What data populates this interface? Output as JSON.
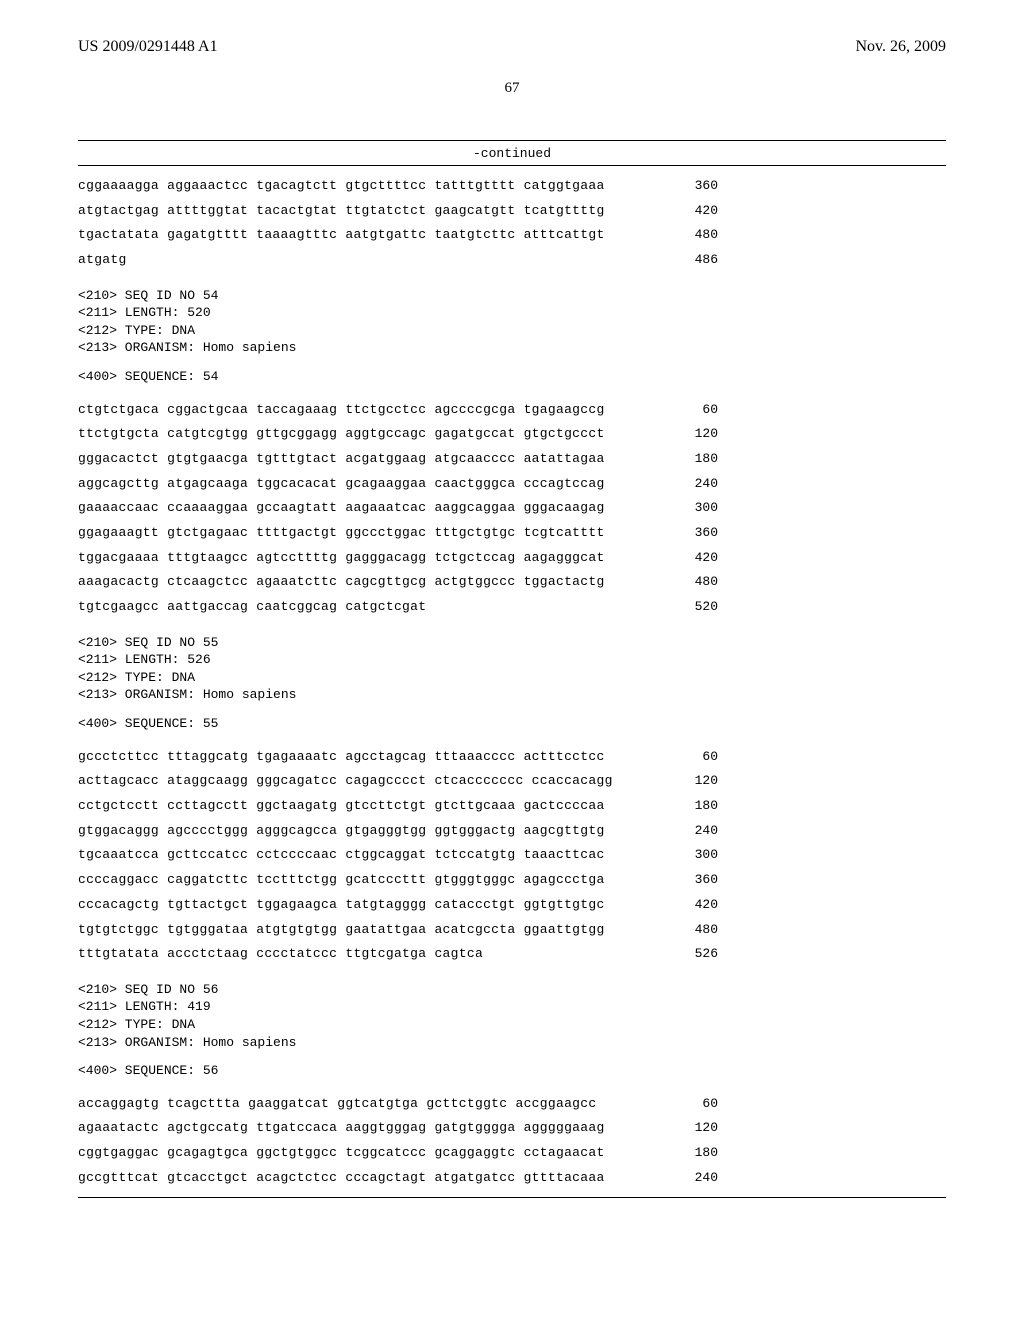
{
  "header": {
    "pub_number": "US 2009/0291448 A1",
    "pub_date": "Nov. 26, 2009",
    "page_number": "67",
    "continued": "-continued"
  },
  "seq53_tail": {
    "rows": [
      {
        "seq": "cggaaaagga aggaaactcc tgacagtctt gtgcttttcc tatttgtttt catggtgaaa",
        "pos": "360"
      },
      {
        "seq": "atgtactgag attttggtat tacactgtat ttgtatctct gaagcatgtt tcatgttttg",
        "pos": "420"
      },
      {
        "seq": "tgactatata gagatgtttt taaaagtttc aatgtgattc taatgtcttc atttcattgt",
        "pos": "480"
      },
      {
        "seq": "atgatg",
        "pos": "486"
      }
    ]
  },
  "seq54": {
    "meta": [
      "<210> SEQ ID NO 54",
      "<211> LENGTH: 520",
      "<212> TYPE: DNA",
      "<213> ORGANISM: Homo sapiens"
    ],
    "title": "<400> SEQUENCE: 54",
    "rows": [
      {
        "seq": "ctgtctgaca cggactgcaa taccagaaag ttctgcctcc agccccgcga tgagaagccg",
        "pos": "60"
      },
      {
        "seq": "ttctgtgcta catgtcgtgg gttgcggagg aggtgccagc gagatgccat gtgctgccct",
        "pos": "120"
      },
      {
        "seq": "gggacactct gtgtgaacga tgtttgtact acgatggaag atgcaacccc aatattagaa",
        "pos": "180"
      },
      {
        "seq": "aggcagcttg atgagcaaga tggcacacat gcagaaggaa caactgggca cccagtccag",
        "pos": "240"
      },
      {
        "seq": "gaaaaccaac ccaaaaggaa gccaagtatt aagaaatcac aaggcaggaa gggacaagag",
        "pos": "300"
      },
      {
        "seq": "ggagaaagtt gtctgagaac ttttgactgt ggccctggac tttgctgtgc tcgtcatttt",
        "pos": "360"
      },
      {
        "seq": "tggacgaaaa tttgtaagcc agtccttttg gagggacagg tctgctccag aagagggcat",
        "pos": "420"
      },
      {
        "seq": "aaagacactg ctcaagctcc agaaatcttc cagcgttgcg actgtggccc tggactactg",
        "pos": "480"
      },
      {
        "seq": "tgtcgaagcc aattgaccag caatcggcag catgctcgat",
        "pos": "520"
      }
    ]
  },
  "seq55": {
    "meta": [
      "<210> SEQ ID NO 55",
      "<211> LENGTH: 526",
      "<212> TYPE: DNA",
      "<213> ORGANISM: Homo sapiens"
    ],
    "title": "<400> SEQUENCE: 55",
    "rows": [
      {
        "seq": "gccctcttcc tttaggcatg tgagaaaatc agcctagcag tttaaacccc actttcctcc",
        "pos": "60"
      },
      {
        "seq": "acttagcacc ataggcaagg gggcagatcc cagagcccct ctcaccccccc ccaccacagg",
        "pos": "120"
      },
      {
        "seq": "cctgctcctt ccttagcctt ggctaagatg gtccttctgt gtcttgcaaa gactccccaa",
        "pos": "180"
      },
      {
        "seq": "gtggacaggg agcccctggg agggcagcca gtgagggtgg ggtgggactg aagcgttgtg",
        "pos": "240"
      },
      {
        "seq": "tgcaaatcca gcttccatcc cctccccaac ctggcaggat tctccatgtg taaacttcac",
        "pos": "300"
      },
      {
        "seq": "ccccaggacc caggatcttc tcctttctgg gcatcccttt gtgggtgggc agagccctga",
        "pos": "360"
      },
      {
        "seq": "cccacagctg tgttactgct tggagaagca tatgtagggg cataccctgt ggtgttgtgc",
        "pos": "420"
      },
      {
        "seq": "tgtgtctggc tgtgggataa atgtgtgtgg gaatattgaa acatcgccta ggaattgtgg",
        "pos": "480"
      },
      {
        "seq": "tttgtatata accctctaag cccctatccc ttgtcgatga cagtca",
        "pos": "526"
      }
    ]
  },
  "seq56": {
    "meta": [
      "<210> SEQ ID NO 56",
      "<211> LENGTH: 419",
      "<212> TYPE: DNA",
      "<213> ORGANISM: Homo sapiens"
    ],
    "title": "<400> SEQUENCE: 56",
    "rows": [
      {
        "seq": "accaggagtg tcagcttta gaaggatcat ggtcatgtga gcttctggtc accggaagcc",
        "pos": "60"
      },
      {
        "seq": "agaaatactc agctgccatg ttgatccaca aaggtgggag gatgtgggga agggggaaag",
        "pos": "120"
      },
      {
        "seq": "cggtgaggac gcagagtgca ggctgtggcc tcggcatccc gcaggaggtc cctagaacat",
        "pos": "180"
      },
      {
        "seq": "gccgtttcat gtcacctgct acagctctcc cccagctagt atgatgatcc gttttacaaa",
        "pos": "240"
      }
    ]
  }
}
